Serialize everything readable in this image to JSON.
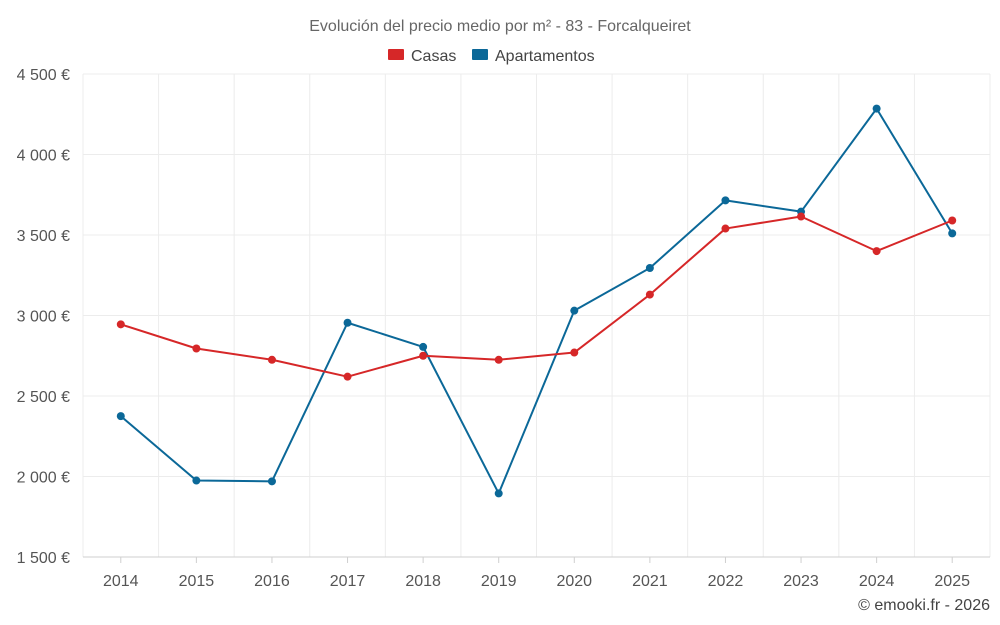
{
  "chart_data": {
    "type": "line",
    "title": "Evolución del precio medio por m² - 83 - Forcalqueiret",
    "categories": [
      "2014",
      "2015",
      "2016",
      "2017",
      "2018",
      "2019",
      "2020",
      "2021",
      "2022",
      "2023",
      "2024",
      "2025"
    ],
    "series": [
      {
        "name": "Casas",
        "color": "#d62728",
        "values": [
          2945,
          2795,
          2725,
          2620,
          2750,
          2725,
          2770,
          3130,
          3540,
          3615,
          3400,
          3590
        ]
      },
      {
        "name": "Apartamentos",
        "color": "#0b6898",
        "values": [
          2375,
          1975,
          1970,
          2955,
          2805,
          1895,
          3030,
          3295,
          3715,
          3645,
          4285,
          3510
        ]
      }
    ],
    "ylim": [
      1500,
      4500
    ],
    "yticks": [
      1500,
      2000,
      2500,
      3000,
      3500,
      4000,
      4500
    ],
    "ytick_labels": [
      "1 500 €",
      "2 000 €",
      "2 500 €",
      "3 000 €",
      "3 500 €",
      "4 000 €",
      "4 500 €"
    ],
    "xlabel": "",
    "ylabel": "",
    "grid": true,
    "legend_position": "top-center"
  },
  "credit": "© emooki.fr - 2026"
}
